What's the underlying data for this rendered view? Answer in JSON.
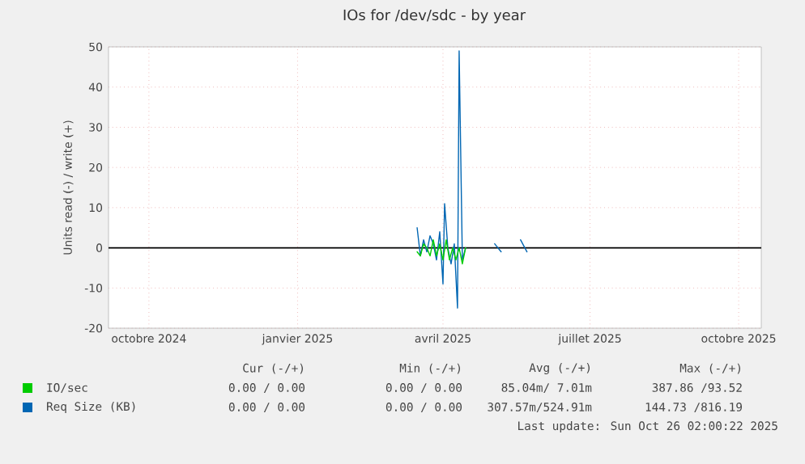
{
  "chart_data": {
    "type": "line",
    "title": "IOs for /dev/sdc - by year",
    "ylabel": "Units read (-) / write (+)",
    "xlim": [
      "2024-09-06",
      "2025-10-15"
    ],
    "xticks": [
      {
        "value": "2024-10-01",
        "label": "octobre 2024"
      },
      {
        "value": "2025-01-01",
        "label": "janvier 2025"
      },
      {
        "value": "2025-04-01",
        "label": "avril 2025"
      },
      {
        "value": "2025-07-01",
        "label": "juillet 2025"
      },
      {
        "value": "2025-10-01",
        "label": "octobre 2025"
      }
    ],
    "ylim": [
      -20,
      50
    ],
    "yticks": [
      -20,
      -10,
      0,
      10,
      20,
      30,
      40,
      50
    ],
    "grid": true,
    "legend": "bottom",
    "ref_lines": [
      {
        "axis": "y",
        "value": 0,
        "color": "#000000"
      }
    ],
    "series": [
      {
        "name": "IO/sec",
        "color": "#00cc00",
        "x": [
          "2025-03-16",
          "2025-03-18",
          "2025-03-20",
          "2025-03-22",
          "2025-03-24",
          "2025-03-26",
          "2025-03-28",
          "2025-03-30",
          "2025-04-01",
          "2025-04-03",
          "2025-04-05",
          "2025-04-07",
          "2025-04-09",
          "2025-04-11",
          "2025-04-13",
          "2025-04-15"
        ],
        "values": [
          -1,
          -2,
          1,
          0,
          -2,
          2,
          -2,
          1,
          -3,
          2,
          -3,
          0,
          -3,
          0,
          -4,
          0
        ]
      },
      {
        "name": "Req Size (KB)",
        "color": "#0066b3",
        "x": [
          "2025-03-16",
          "2025-03-18",
          "2025-03-20",
          "2025-03-22",
          "2025-03-24",
          "2025-03-26",
          "2025-03-28",
          "2025-03-30",
          "2025-04-01",
          "2025-04-02",
          "2025-04-04",
          "2025-04-06",
          "2025-04-08",
          "2025-04-10",
          "2025-04-11",
          "2025-04-13",
          "2025-04-15",
          "2025-04-25",
          "2025-05-03",
          "2025-05-07",
          "2025-05-12",
          "2025-05-19",
          "2025-05-23"
        ],
        "values": [
          5,
          -2,
          2,
          -1,
          3,
          1,
          -3,
          4,
          -9,
          11,
          0,
          -4,
          1,
          -15,
          49,
          -3,
          0,
          null,
          1,
          -1,
          null,
          2,
          -1
        ]
      }
    ],
    "annotations": [
      "Cur (-/+)",
      "Min (-/+)",
      "Avg (-/+)",
      "Max (-/+)",
      "0.00 / 0.00",
      "0.00 / 0.00",
      "85.04m/ 7.01m",
      "387.86 /93.52",
      "0.00 / 0.00",
      "0.00 / 0.00",
      "307.57m/524.91m",
      "144.73 /816.19",
      "Last update: Sun Oct 26 02:00:22 2025"
    ]
  }
}
